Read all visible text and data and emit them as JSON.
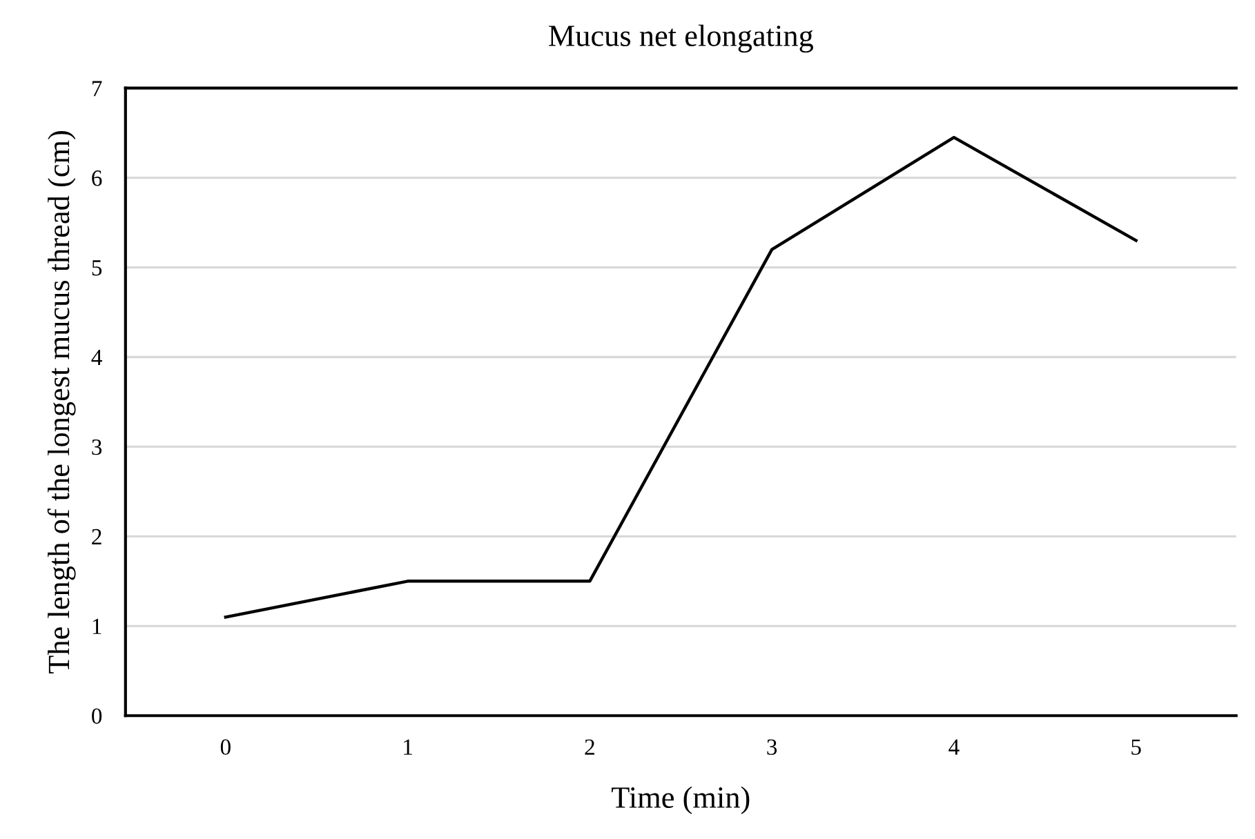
{
  "chart_data": {
    "type": "line",
    "title": "Mucus net elongating",
    "xlabel": "Time (min)",
    "ylabel": "The length of the longest mucus thread (cm)",
    "categories": [
      "0",
      "1",
      "2",
      "3",
      "4",
      "5"
    ],
    "series": [
      {
        "color": "#000000",
        "values": [
          1.1,
          1.5,
          1.5,
          5.2,
          6.45,
          5.3
        ]
      }
    ],
    "ylim": [
      0,
      7
    ],
    "yticks": [
      0,
      1,
      2,
      3,
      4,
      5,
      6,
      7
    ],
    "grid": "y",
    "legend": false,
    "marker": "none",
    "line_style": "solid"
  }
}
